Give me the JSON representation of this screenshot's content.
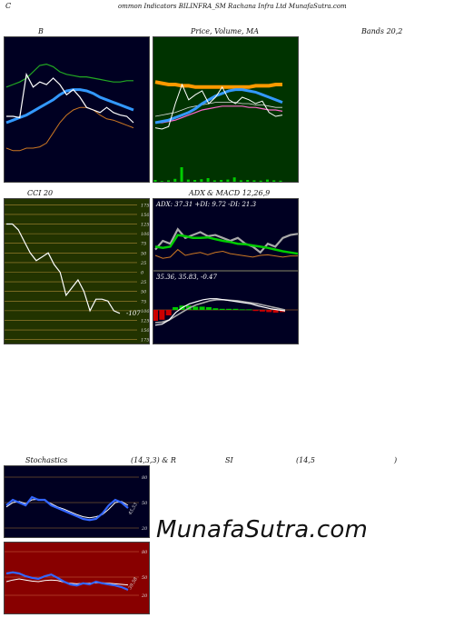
{
  "header": {
    "left_letter": "C",
    "title": "ommon Indicators BILINFRA_SM Rachana Infra Ltd MunafaSutra.com"
  },
  "bollinger": {
    "label_left": "B",
    "label_middle": "Price, Volume, MA",
    "label_right": "Bands 20,2",
    "colors": {
      "bg": "#000022",
      "upper": "#22aa22",
      "middle": "#3399ff",
      "lower": "#cc7722",
      "price": "#ffffff"
    },
    "price": [
      0.45,
      0.45,
      0.44,
      0.78,
      0.68,
      0.72,
      0.7,
      0.75,
      0.7,
      0.62,
      0.66,
      0.6,
      0.52,
      0.5,
      0.48,
      0.52,
      0.48,
      0.46,
      0.45,
      0.4
    ],
    "upper": [
      0.68,
      0.7,
      0.72,
      0.75,
      0.8,
      0.85,
      0.86,
      0.84,
      0.8,
      0.78,
      0.77,
      0.76,
      0.76,
      0.75,
      0.74,
      0.73,
      0.72,
      0.72,
      0.73,
      0.73
    ],
    "middle": [
      0.4,
      0.42,
      0.44,
      0.46,
      0.49,
      0.52,
      0.55,
      0.58,
      0.62,
      0.65,
      0.66,
      0.66,
      0.65,
      0.63,
      0.6,
      0.58,
      0.56,
      0.54,
      0.52,
      0.5
    ],
    "lower": [
      0.2,
      0.18,
      0.18,
      0.2,
      0.2,
      0.21,
      0.24,
      0.32,
      0.4,
      0.46,
      0.5,
      0.52,
      0.52,
      0.5,
      0.46,
      0.43,
      0.42,
      0.4,
      0.38,
      0.36
    ]
  },
  "price_volume": {
    "colors": {
      "bg": "#003300",
      "price": "#ffffff",
      "ma_short": "#3399ff",
      "ma_long": "#ff9900",
      "ma_mid": "#dddddd",
      "ma_pink": "#ff66cc",
      "volume": "#00cc00"
    },
    "price": [
      0.36,
      0.35,
      0.37,
      0.55,
      0.7,
      0.58,
      0.62,
      0.65,
      0.55,
      0.6,
      0.68,
      0.58,
      0.55,
      0.6,
      0.58,
      0.55,
      0.57,
      0.48,
      0.45,
      0.46
    ],
    "ma_long": [
      0.72,
      0.71,
      0.7,
      0.7,
      0.69,
      0.69,
      0.68,
      0.68,
      0.68,
      0.68,
      0.68,
      0.68,
      0.68,
      0.68,
      0.68,
      0.69,
      0.69,
      0.69,
      0.7,
      0.7
    ],
    "ma_short": [
      0.4,
      0.41,
      0.42,
      0.44,
      0.46,
      0.48,
      0.51,
      0.55,
      0.58,
      0.61,
      0.63,
      0.65,
      0.66,
      0.66,
      0.65,
      0.64,
      0.62,
      0.6,
      0.58,
      0.56
    ],
    "ma_mid": [
      0.45,
      0.46,
      0.47,
      0.48,
      0.5,
      0.52,
      0.53,
      0.54,
      0.55,
      0.56,
      0.56,
      0.56,
      0.56,
      0.55,
      0.55,
      0.54,
      0.54,
      0.53,
      0.52,
      0.52
    ],
    "ma_pink": [
      0.4,
      0.4,
      0.41,
      0.42,
      0.44,
      0.46,
      0.48,
      0.5,
      0.51,
      0.52,
      0.53,
      0.53,
      0.53,
      0.53,
      0.52,
      0.52,
      0.51,
      0.5,
      0.5,
      0.49
    ],
    "volume": [
      0.05,
      0.02,
      0.04,
      0.08,
      0.4,
      0.06,
      0.05,
      0.07,
      0.1,
      0.04,
      0.05,
      0.06,
      0.12,
      0.04,
      0.05,
      0.04,
      0.03,
      0.06,
      0.04,
      0.03
    ]
  },
  "cci": {
    "label": "CCI 20",
    "value_label": "-107",
    "colors": {
      "bg": "#223300",
      "line": "#ffffff",
      "grid": "#aa8833"
    },
    "ticks": [
      "175",
      "150",
      "125",
      "100",
      "75",
      "50",
      "25",
      "0",
      "25",
      "50",
      "75",
      "100",
      "125",
      "150",
      "175"
    ],
    "levels": [
      175,
      150,
      125,
      100,
      75,
      50,
      25,
      0,
      -25,
      -50,
      -75,
      -100,
      -125,
      -150,
      -175
    ],
    "ylim": [
      -190,
      190
    ],
    "values": [
      125,
      125,
      110,
      80,
      50,
      30,
      40,
      50,
      20,
      0,
      -60,
      -40,
      -20,
      -50,
      -100,
      -70,
      -70,
      -75,
      -100,
      -107
    ]
  },
  "adx": {
    "label_left": "ADX",
    "label_right": "& MACD 12,26,9",
    "readout": "ADX: 37.31  +DI: 9.72  -DI: 21.3",
    "colors": {
      "bg": "#000022",
      "adx": "#00cc00",
      "plus_di": "#cc7722",
      "minus_di": "#aaaaaa"
    },
    "adx_line": [
      0.4,
      0.38,
      0.4,
      0.6,
      0.58,
      0.55,
      0.55,
      0.56,
      0.53,
      0.5,
      0.48,
      0.45,
      0.44,
      0.42,
      0.4,
      0.38,
      0.35,
      0.32,
      0.3,
      0.28
    ],
    "plus_di": [
      0.25,
      0.2,
      0.22,
      0.35,
      0.25,
      0.28,
      0.3,
      0.26,
      0.3,
      0.32,
      0.28,
      0.26,
      0.24,
      0.22,
      0.25,
      0.26,
      0.24,
      0.22,
      0.24,
      0.24
    ],
    "minus_di": [
      0.35,
      0.5,
      0.45,
      0.7,
      0.55,
      0.6,
      0.65,
      0.58,
      0.6,
      0.55,
      0.5,
      0.55,
      0.45,
      0.4,
      0.3,
      0.45,
      0.4,
      0.55,
      0.6,
      0.62
    ]
  },
  "macd": {
    "readout": "35.36,  35.83,  -0.47",
    "colors": {
      "bg": "#000022",
      "macd": "#ffffff",
      "signal": "#aaaaaa",
      "hist_pos": "#00cc00",
      "hist_neg": "#cc0000",
      "zero": "#cc7722"
    },
    "macd_line": [
      0.2,
      0.22,
      0.3,
      0.45,
      0.55,
      0.62,
      0.66,
      0.7,
      0.72,
      0.72,
      0.7,
      0.68,
      0.66,
      0.64,
      0.62,
      0.58,
      0.55,
      0.52,
      0.5,
      0.48
    ],
    "signal_line": [
      0.25,
      0.26,
      0.3,
      0.38,
      0.46,
      0.54,
      0.6,
      0.64,
      0.68,
      0.7,
      0.7,
      0.69,
      0.68,
      0.66,
      0.64,
      0.62,
      0.59,
      0.56,
      0.53,
      0.5
    ],
    "hist": [
      -0.2,
      -0.18,
      -0.1,
      0.05,
      0.08,
      0.08,
      0.06,
      0.06,
      0.05,
      0.03,
      0.02,
      0.02,
      0.02,
      0.01,
      0.01,
      -0.02,
      -0.03,
      -0.04,
      -0.05,
      -0.04
    ]
  },
  "stochastics": {
    "label_left": "Stochastics",
    "label_mid": "(14,3,3) & R",
    "label_si": "SI",
    "label_rsi_params": "(14,5",
    "label_close": ")",
    "ticks": [
      "80",
      "50",
      "20"
    ],
    "side_label": "45,53",
    "colors": {
      "bg": "#000022",
      "k": "#3366ff",
      "d": "#ffffff",
      "grid": "#aa7733"
    },
    "k": [
      0.45,
      0.55,
      0.5,
      0.45,
      0.6,
      0.55,
      0.55,
      0.45,
      0.4,
      0.35,
      0.3,
      0.25,
      0.2,
      0.18,
      0.2,
      0.3,
      0.45,
      0.55,
      0.5,
      0.4
    ],
    "d": [
      0.42,
      0.5,
      0.52,
      0.48,
      0.55,
      0.56,
      0.54,
      0.48,
      0.42,
      0.38,
      0.33,
      0.28,
      0.24,
      0.22,
      0.24,
      0.28,
      0.38,
      0.5,
      0.52,
      0.45
    ]
  },
  "rsi": {
    "ticks": [
      "80",
      "50",
      "20"
    ],
    "side_label": "39.58",
    "colors": {
      "bg": "#880000",
      "rsi": "#3366ff",
      "aux": "#ffffff",
      "grid": "#cc6644"
    },
    "rsi_line": [
      0.6,
      0.62,
      0.6,
      0.55,
      0.52,
      0.5,
      0.55,
      0.58,
      0.52,
      0.45,
      0.4,
      0.38,
      0.42,
      0.4,
      0.45,
      0.42,
      0.4,
      0.38,
      0.35,
      0.3
    ],
    "aux_line": [
      0.45,
      0.48,
      0.5,
      0.48,
      0.46,
      0.45,
      0.47,
      0.48,
      0.47,
      0.44,
      0.42,
      0.41,
      0.42,
      0.42,
      0.43,
      0.43,
      0.42,
      0.41,
      0.4,
      0.39
    ]
  },
  "watermark": "MunafaSutra.com"
}
